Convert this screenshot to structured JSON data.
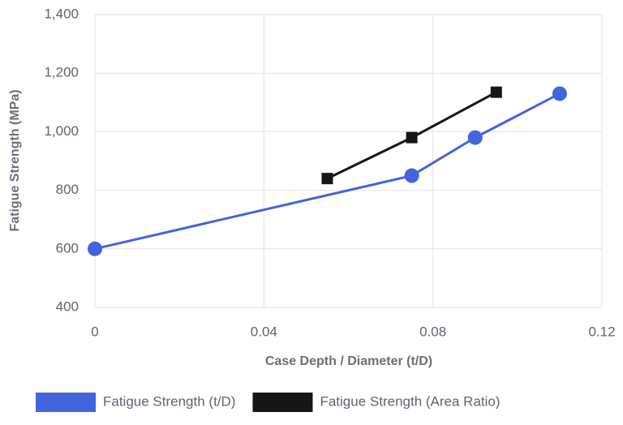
{
  "chart_data": {
    "type": "line",
    "x_label": "Case Depth / Diameter (t/D)",
    "y_label": "Fatigue Strength (MPa)",
    "series": [
      {
        "name": "Fatigue Strength (t/D)",
        "color": "#4364dd",
        "marker": "circle",
        "x": [
          0,
          0.075,
          0.09,
          0.11
        ],
        "values": [
          600,
          850,
          980,
          1130
        ]
      },
      {
        "name": "Fatigue Strength (Area Ratio)",
        "color": "#161616",
        "marker": "square",
        "x": [
          0.055,
          0.075,
          0.095
        ],
        "values": [
          840,
          980,
          1135
        ]
      }
    ],
    "xlim": [
      0,
      0.12
    ],
    "xticks": [
      0,
      0.04,
      0.08,
      0.12
    ],
    "ylim": [
      400,
      1400
    ],
    "yticks": [
      400,
      600,
      800,
      {
        "value": 1000,
        "label": "1,000"
      },
      {
        "value": 1200,
        "label": "1,200"
      },
      {
        "value": 1400,
        "label": "1,400"
      }
    ],
    "grid": true,
    "legend": "bottom"
  }
}
